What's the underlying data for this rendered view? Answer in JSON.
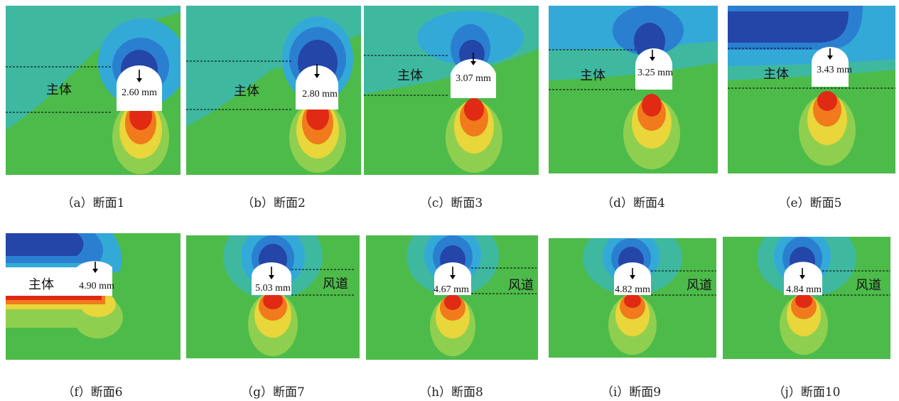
{
  "panels": [
    {
      "caption": "（a）断面1",
      "value": "2.60 mm",
      "label": "主体"
    },
    {
      "caption": "（b）断面2",
      "value": "2.80 mm",
      "label": "主体"
    },
    {
      "caption": "（c）断面3",
      "value": "3.07 mm",
      "label": "主体"
    },
    {
      "caption": "（d）断面4",
      "value": "3.25 mm",
      "label": "主体"
    },
    {
      "caption": "（e）断面5",
      "value": "3.43 mm",
      "label": "主体"
    },
    {
      "caption": "（f）断面6",
      "value": "4.90 mm",
      "label": "主体"
    },
    {
      "caption": "（g）断面7",
      "value": "5.03 mm",
      "label": "风道"
    },
    {
      "caption": "（h）断面8",
      "value": "4.67 mm",
      "label": "风道"
    },
    {
      "caption": "（i）断面9",
      "value": "4.82 mm",
      "label": "风道"
    },
    {
      "caption": "（j）断面10",
      "value": "4.84 mm",
      "label": "风道"
    }
  ],
  "colors": {
    "field_green": "#4dbb4a",
    "field_teal": "#3fb8a0",
    "light_blue": "#33a9d8",
    "mid_blue": "#2a7fd0",
    "dark_blue": "#2446a8",
    "red": "#e02a14",
    "orange": "#f07a1c",
    "yellow": "#e8d63a",
    "yellow_green": "#b5d647"
  }
}
